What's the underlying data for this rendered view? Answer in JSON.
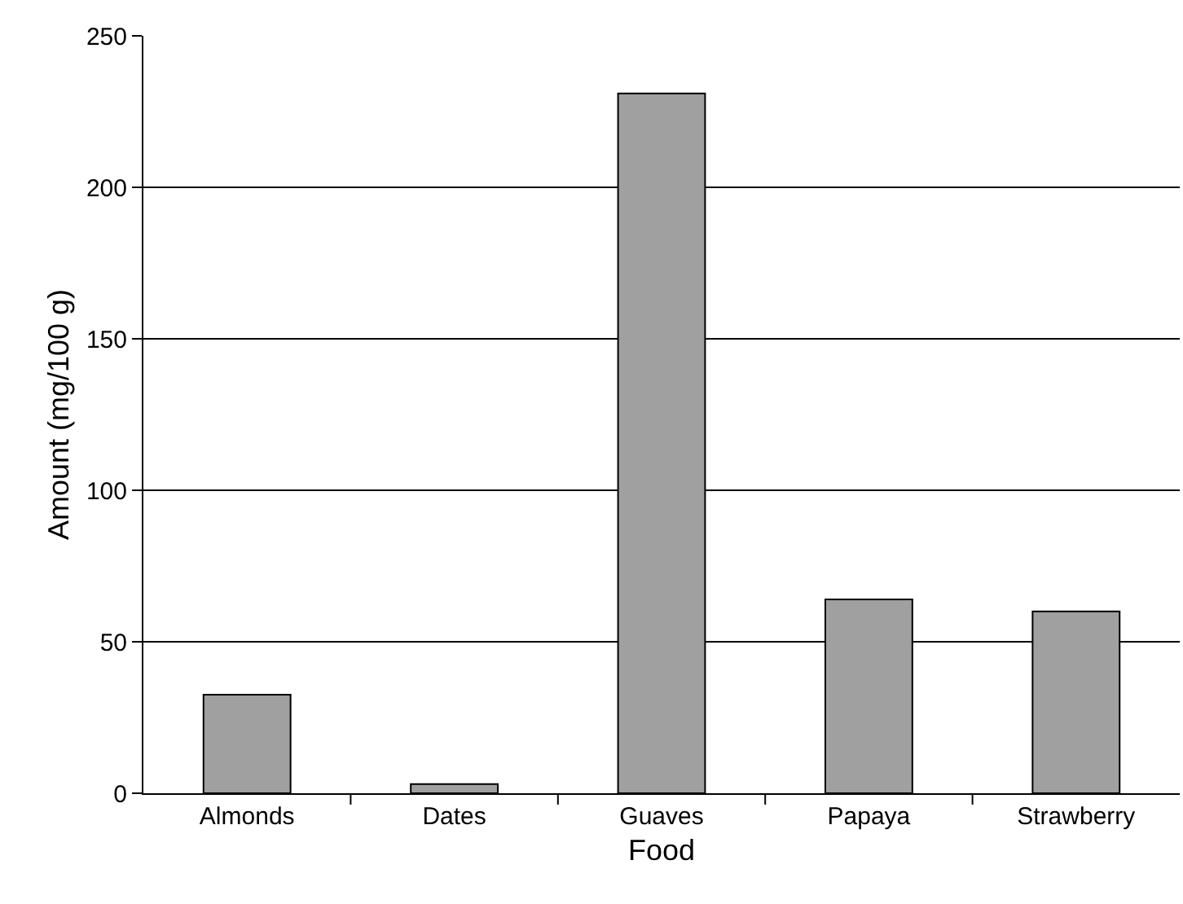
{
  "chart_data": {
    "type": "bar",
    "xlabel": "Food",
    "ylabel": "Amount (mg/100 g)",
    "categories": [
      "Almonds",
      "Dates",
      "Guaves",
      "Papaya",
      "Strawberry"
    ],
    "values": [
      32.5,
      3,
      231,
      64,
      60
    ],
    "color": "#a0a0a0",
    "ylim": [
      0,
      250
    ],
    "yticks": [
      0,
      50,
      100,
      150,
      200,
      250
    ],
    "grid": "y",
    "legend": false
  }
}
